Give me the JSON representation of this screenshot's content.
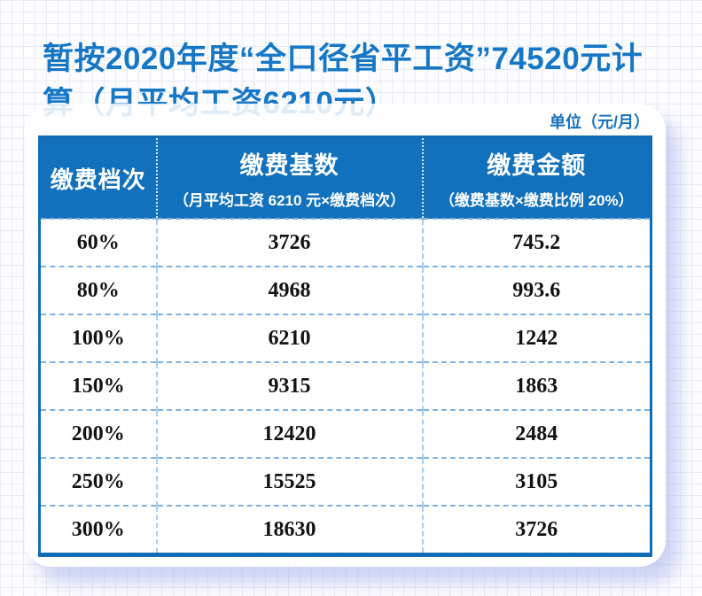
{
  "title": "暂按2020年度“全口径省平工资”74520元计算（月平均工资6210元）",
  "unit_label": "单位（元/月）",
  "table": {
    "columns": [
      {
        "label": "缴费档次",
        "sublabel": ""
      },
      {
        "label": "缴费基数",
        "sublabel": "（月平均工资 6210 元×缴费档次）"
      },
      {
        "label": "缴费金额",
        "sublabel": "（缴费基数×缴费比例 20%）"
      }
    ],
    "rows": [
      [
        "60%",
        "3726",
        "745.2"
      ],
      [
        "80%",
        "4968",
        "993.6"
      ],
      [
        "100%",
        "6210",
        "1242"
      ],
      [
        "150%",
        "9315",
        "1863"
      ],
      [
        "200%",
        "12420",
        "2484"
      ],
      [
        "250%",
        "15525",
        "3105"
      ],
      [
        "300%",
        "18630",
        "3726"
      ]
    ]
  },
  "colors": {
    "title_blue": "#1577c6",
    "header_bg": "#1271bc",
    "table_border": "#0f6cb5",
    "dashed_line": "#7db3e2",
    "body_text": "#131313",
    "shadow": "#a8b2eb"
  },
  "chart_data": {
    "type": "table",
    "title": "暂按2020年度“全口径省平工资”74520元计算（月平均工资6210元）",
    "unit": "元/月",
    "columns": [
      "缴费档次",
      "缴费基数",
      "缴费金额"
    ],
    "rows": [
      {
        "档次": "60%",
        "基数": 3726,
        "金额": 745.2
      },
      {
        "档次": "80%",
        "基数": 4968,
        "金额": 993.6
      },
      {
        "档次": "100%",
        "基数": 6210,
        "金额": 1242
      },
      {
        "档次": "150%",
        "基数": 9315,
        "金额": 1863
      },
      {
        "档次": "200%",
        "基数": 12420,
        "金额": 2484
      },
      {
        "档次": "250%",
        "基数": 15525,
        "金额": 3105
      },
      {
        "档次": "300%",
        "基数": 18630,
        "金额": 3726
      }
    ]
  }
}
